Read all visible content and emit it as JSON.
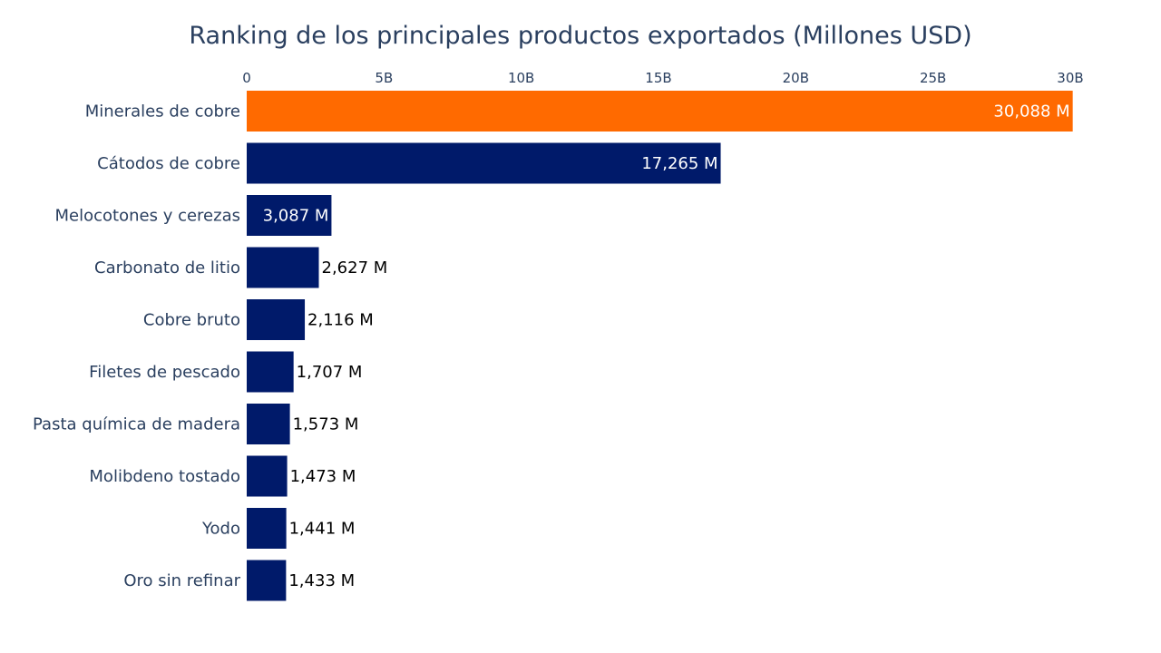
{
  "chart_data": {
    "type": "bar",
    "orientation": "horizontal",
    "title": "Ranking de los principales productos exportados (Millones USD)",
    "xlabel": "",
    "ylabel": "",
    "x_axis_position": "top",
    "xlim": [
      0,
      30000
    ],
    "x_ticks": [
      0,
      5000,
      10000,
      15000,
      20000,
      25000,
      30000
    ],
    "x_tick_labels": [
      "0",
      "5B",
      "10B",
      "15B",
      "20B",
      "25B",
      "30B"
    ],
    "grid": false,
    "categories": [
      "Minerales de cobre",
      "Cátodos de cobre",
      "Melocotones y cerezas",
      "Carbonato de litio",
      "Cobre bruto",
      "Filetes de pescado",
      "Pasta química de madera",
      "Molibdeno tostado",
      "Yodo",
      "Oro sin refinar"
    ],
    "values": [
      30088,
      17265,
      3087,
      2627,
      2116,
      1707,
      1573,
      1473,
      1441,
      1433
    ],
    "value_labels": [
      "30,088 M",
      "17,265 M",
      "3,087 M",
      "2,627 M",
      "2,116 M",
      "1,707 M",
      "1,573 M",
      "1,473 M",
      "1,441 M",
      "1,433 M"
    ],
    "bar_colors": [
      "#ff6a00",
      "#001a6a",
      "#001a6a",
      "#001a6a",
      "#001a6a",
      "#001a6a",
      "#001a6a",
      "#001a6a",
      "#001a6a",
      "#001a6a"
    ],
    "label_inside_color": "#ffffff",
    "label_outside_color": "#000000"
  }
}
